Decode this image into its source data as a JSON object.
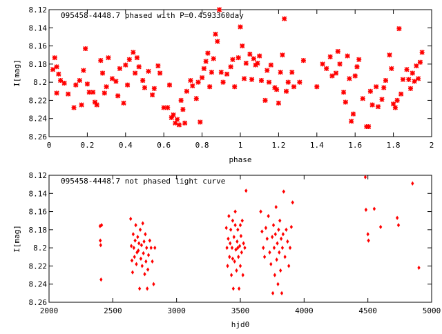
{
  "chart_data": [
    {
      "type": "scatter",
      "title": "095458-4448.7 phased with P=0.4593360day",
      "xlabel": "phase",
      "ylabel": "I[mag]",
      "xlim": [
        0,
        2
      ],
      "ylim": [
        8.12,
        8.26
      ],
      "y_inverted": true,
      "x_ticks": [
        "0",
        "0.2",
        "0.4",
        "0.6",
        "0.8",
        "1",
        "1.2",
        "1.4",
        "1.6",
        "1.8",
        "2"
      ],
      "y_ticks": [
        "8.12",
        "8.14",
        "8.16",
        "8.18",
        "8.2",
        "8.22",
        "8.24",
        "8.26"
      ],
      "marker": "star",
      "color": "#ff0000",
      "grid": false,
      "points": [
        [
          0.02,
          8.186
        ],
        [
          0.03,
          8.173
        ],
        [
          0.04,
          8.183
        ],
        [
          0.05,
          8.191
        ],
        [
          0.04,
          8.212
        ],
        [
          0.06,
          8.198
        ],
        [
          0.08,
          8.201
        ],
        [
          0.1,
          8.213
        ],
        [
          0.13,
          8.228
        ],
        [
          0.14,
          8.203
        ],
        [
          0.16,
          8.198
        ],
        [
          0.17,
          8.225
        ],
        [
          0.18,
          8.187
        ],
        [
          0.19,
          8.163
        ],
        [
          0.2,
          8.202
        ],
        [
          0.21,
          8.211
        ],
        [
          0.23,
          8.211
        ],
        [
          0.24,
          8.222
        ],
        [
          0.25,
          8.225
        ],
        [
          0.27,
          8.176
        ],
        [
          0.28,
          8.19
        ],
        [
          0.29,
          8.212
        ],
        [
          0.3,
          8.205
        ],
        [
          0.31,
          8.173
        ],
        [
          0.33,
          8.196
        ],
        [
          0.35,
          8.199
        ],
        [
          0.36,
          8.215
        ],
        [
          0.37,
          8.185
        ],
        [
          0.39,
          8.223
        ],
        [
          0.4,
          8.181
        ],
        [
          0.41,
          8.203
        ],
        [
          0.42,
          8.175
        ],
        [
          0.44,
          8.167
        ],
        [
          0.45,
          8.19
        ],
        [
          0.46,
          8.173
        ],
        [
          0.47,
          8.183
        ],
        [
          0.49,
          8.198
        ],
        [
          0.5,
          8.206
        ],
        [
          0.52,
          8.188
        ],
        [
          0.54,
          8.214
        ],
        [
          0.55,
          8.207
        ],
        [
          0.57,
          8.182
        ],
        [
          0.58,
          8.19
        ],
        [
          0.6,
          8.228
        ],
        [
          0.62,
          8.228
        ],
        [
          0.63,
          8.203
        ],
        [
          0.64,
          8.239
        ],
        [
          0.65,
          8.236
        ],
        [
          0.66,
          8.245
        ],
        [
          0.67,
          8.241
        ],
        [
          0.68,
          8.247
        ],
        [
          0.69,
          8.22
        ],
        [
          0.7,
          8.23
        ],
        [
          0.71,
          8.245
        ],
        [
          0.72,
          8.21
        ],
        [
          0.74,
          8.198
        ],
        [
          0.75,
          8.204
        ],
        [
          0.77,
          8.218
        ],
        [
          0.78,
          8.2
        ],
        [
          0.79,
          8.244
        ],
        [
          0.8,
          8.195
        ],
        [
          0.81,
          8.185
        ],
        [
          0.82,
          8.177
        ],
        [
          0.83,
          8.168
        ],
        [
          0.84,
          8.205
        ],
        [
          0.85,
          8.189
        ],
        [
          0.86,
          8.174
        ],
        [
          0.87,
          8.147
        ],
        [
          0.88,
          8.155
        ],
        [
          0.89,
          8.12
        ],
        [
          0.9,
          8.189
        ],
        [
          0.91,
          8.2
        ],
        [
          0.93,
          8.191
        ],
        [
          0.95,
          8.183
        ],
        [
          0.96,
          8.175
        ],
        [
          0.97,
          8.205
        ],
        [
          0.99,
          8.173
        ],
        [
          1.0,
          8.139
        ],
        [
          1.01,
          8.16
        ],
        [
          1.02,
          8.196
        ],
        [
          1.03,
          8.179
        ],
        [
          1.05,
          8.169
        ],
        [
          1.06,
          8.197
        ],
        [
          1.07,
          8.174
        ],
        [
          1.08,
          8.181
        ],
        [
          1.09,
          8.179
        ],
        [
          1.1,
          8.171
        ],
        [
          1.11,
          8.198
        ],
        [
          1.13,
          8.22
        ],
        [
          1.14,
          8.187
        ],
        [
          1.15,
          8.2
        ],
        [
          1.16,
          8.181
        ],
        [
          1.18,
          8.206
        ],
        [
          1.19,
          8.208
        ],
        [
          1.2,
          8.223
        ],
        [
          1.21,
          8.189
        ],
        [
          1.22,
          8.17
        ],
        [
          1.23,
          8.13
        ],
        [
          1.24,
          8.21
        ],
        [
          1.25,
          8.2
        ],
        [
          1.27,
          8.189
        ],
        [
          1.28,
          8.205
        ],
        [
          1.31,
          8.2
        ],
        [
          1.33,
          8.176
        ],
        [
          1.4,
          8.205
        ],
        [
          1.43,
          8.18
        ],
        [
          1.45,
          8.185
        ],
        [
          1.47,
          8.172
        ],
        [
          1.48,
          8.193
        ],
        [
          1.5,
          8.19
        ],
        [
          1.51,
          8.166
        ],
        [
          1.52,
          8.18
        ],
        [
          1.54,
          8.211
        ],
        [
          1.55,
          8.222
        ],
        [
          1.56,
          8.171
        ],
        [
          1.57,
          8.196
        ],
        [
          1.58,
          8.243
        ],
        [
          1.59,
          8.235
        ],
        [
          1.6,
          8.193
        ],
        [
          1.61,
          8.183
        ],
        [
          1.62,
          8.175
        ],
        [
          1.64,
          8.218
        ],
        [
          1.66,
          8.249
        ],
        [
          1.67,
          8.249
        ],
        [
          1.68,
          8.21
        ],
        [
          1.69,
          8.225
        ],
        [
          1.71,
          8.205
        ],
        [
          1.72,
          8.227
        ],
        [
          1.74,
          8.219
        ],
        [
          1.75,
          8.206
        ],
        [
          1.76,
          8.198
        ],
        [
          1.78,
          8.17
        ],
        [
          1.79,
          8.185
        ],
        [
          1.8,
          8.224
        ],
        [
          1.81,
          8.228
        ],
        [
          1.82,
          8.22
        ],
        [
          1.83,
          8.141
        ],
        [
          1.84,
          8.213
        ],
        [
          1.85,
          8.197
        ],
        [
          1.87,
          8.186
        ],
        [
          1.88,
          8.197
        ],
        [
          1.89,
          8.207
        ],
        [
          1.9,
          8.19
        ],
        [
          1.91,
          8.199
        ],
        [
          1.92,
          8.182
        ],
        [
          1.93,
          8.196
        ],
        [
          1.94,
          8.178
        ],
        [
          1.95,
          8.167
        ]
      ]
    },
    {
      "type": "scatter",
      "title": "095458-4448.7 not phased light curve",
      "xlabel": "hjd0",
      "ylabel": "I[mag]",
      "xlim": [
        2000,
        5000
      ],
      "ylim": [
        8.12,
        8.26
      ],
      "y_inverted": true,
      "x_ticks": [
        "2000",
        "2500",
        "3000",
        "3500",
        "4000",
        "4500",
        "5000"
      ],
      "y_ticks": [
        "8.12",
        "8.14",
        "8.16",
        "8.18",
        "8.2",
        "8.22",
        "8.24",
        "8.26"
      ],
      "marker": "diamond",
      "color": "#ff0000",
      "grid": false,
      "points": [
        [
          2400,
          8.176
        ],
        [
          2402,
          8.192
        ],
        [
          2405,
          8.197
        ],
        [
          2408,
          8.235
        ],
        [
          2412,
          8.175
        ],
        [
          2640,
          8.168
        ],
        [
          2645,
          8.198
        ],
        [
          2650,
          8.214
        ],
        [
          2655,
          8.227
        ],
        [
          2660,
          8.185
        ],
        [
          2665,
          8.2
        ],
        [
          2670,
          8.21
        ],
        [
          2675,
          8.192
        ],
        [
          2680,
          8.175
        ],
        [
          2685,
          8.218
        ],
        [
          2690,
          8.205
        ],
        [
          2695,
          8.188
        ],
        [
          2700,
          8.203
        ],
        [
          2705,
          8.195
        ],
        [
          2710,
          8.245
        ],
        [
          2715,
          8.18
        ],
        [
          2720,
          8.212
        ],
        [
          2725,
          8.197
        ],
        [
          2730,
          8.22
        ],
        [
          2735,
          8.173
        ],
        [
          2740,
          8.206
        ],
        [
          2745,
          8.193
        ],
        [
          2750,
          8.229
        ],
        [
          2755,
          8.185
        ],
        [
          2760,
          8.215
        ],
        [
          2765,
          8.2
        ],
        [
          2770,
          8.245
        ],
        [
          2775,
          8.224
        ],
        [
          2780,
          8.208
        ],
        [
          2790,
          8.192
        ],
        [
          2800,
          8.2
        ],
        [
          2810,
          8.215
        ],
        [
          2820,
          8.24
        ],
        [
          2830,
          8.2
        ],
        [
          3390,
          8.178
        ],
        [
          3395,
          8.2
        ],
        [
          3400,
          8.22
        ],
        [
          3405,
          8.19
        ],
        [
          3410,
          8.165
        ],
        [
          3415,
          8.21
        ],
        [
          3420,
          8.195
        ],
        [
          3425,
          8.18
        ],
        [
          3430,
          8.23
        ],
        [
          3435,
          8.2
        ],
        [
          3440,
          8.17
        ],
        [
          3445,
          8.245
        ],
        [
          3450,
          8.188
        ],
        [
          3455,
          8.215
        ],
        [
          3460,
          8.175
        ],
        [
          3465,
          8.202
        ],
        [
          3470,
          8.225
        ],
        [
          3475,
          8.193
        ],
        [
          3480,
          8.18
        ],
        [
          3485,
          8.21
        ],
        [
          3490,
          8.245
        ],
        [
          3495,
          8.198
        ],
        [
          3500,
          8.22
        ],
        [
          3505,
          8.187
        ],
        [
          3510,
          8.205
        ],
        [
          3515,
          8.17
        ],
        [
          3520,
          8.23
        ],
        [
          3525,
          8.195
        ],
        [
          3535,
          8.2
        ],
        [
          3545,
          8.137
        ],
        [
          3440,
          8.212
        ],
        [
          3460,
          8.16
        ],
        [
          3480,
          8.2
        ],
        [
          3500,
          8.175
        ],
        [
          3660,
          8.16
        ],
        [
          3670,
          8.182
        ],
        [
          3680,
          8.2
        ],
        [
          3690,
          8.21
        ],
        [
          3700,
          8.178
        ],
        [
          3710,
          8.19
        ],
        [
          3720,
          8.165
        ],
        [
          3730,
          8.205
        ],
        [
          3740,
          8.218
        ],
        [
          3750,
          8.188
        ],
        [
          3755,
          8.25
        ],
        [
          3760,
          8.175
        ],
        [
          3765,
          8.2
        ],
        [
          3770,
          8.23
        ],
        [
          3775,
          8.185
        ],
        [
          3780,
          8.155
        ],
        [
          3785,
          8.213
        ],
        [
          3790,
          8.195
        ],
        [
          3795,
          8.24
        ],
        [
          3800,
          8.18
        ],
        [
          3805,
          8.205
        ],
        [
          3810,
          8.17
        ],
        [
          3815,
          8.225
        ],
        [
          3820,
          8.19
        ],
        [
          3825,
          8.25
        ],
        [
          3830,
          8.2
        ],
        [
          3835,
          8.185
        ],
        [
          3840,
          8.138
        ],
        [
          3850,
          8.21
        ],
        [
          3860,
          8.18
        ],
        [
          3870,
          8.193
        ],
        [
          3880,
          8.22
        ],
        [
          3890,
          8.2
        ],
        [
          3900,
          8.177
        ],
        [
          3910,
          8.15
        ],
        [
          4480,
          8.122
        ],
        [
          4485,
          8.158
        ],
        [
          4500,
          8.185
        ],
        [
          4505,
          8.192
        ],
        [
          4550,
          8.157
        ],
        [
          4600,
          8.177
        ],
        [
          4730,
          8.167
        ],
        [
          4740,
          8.175
        ],
        [
          4850,
          8.129
        ],
        [
          4900,
          8.222
        ]
      ]
    }
  ]
}
